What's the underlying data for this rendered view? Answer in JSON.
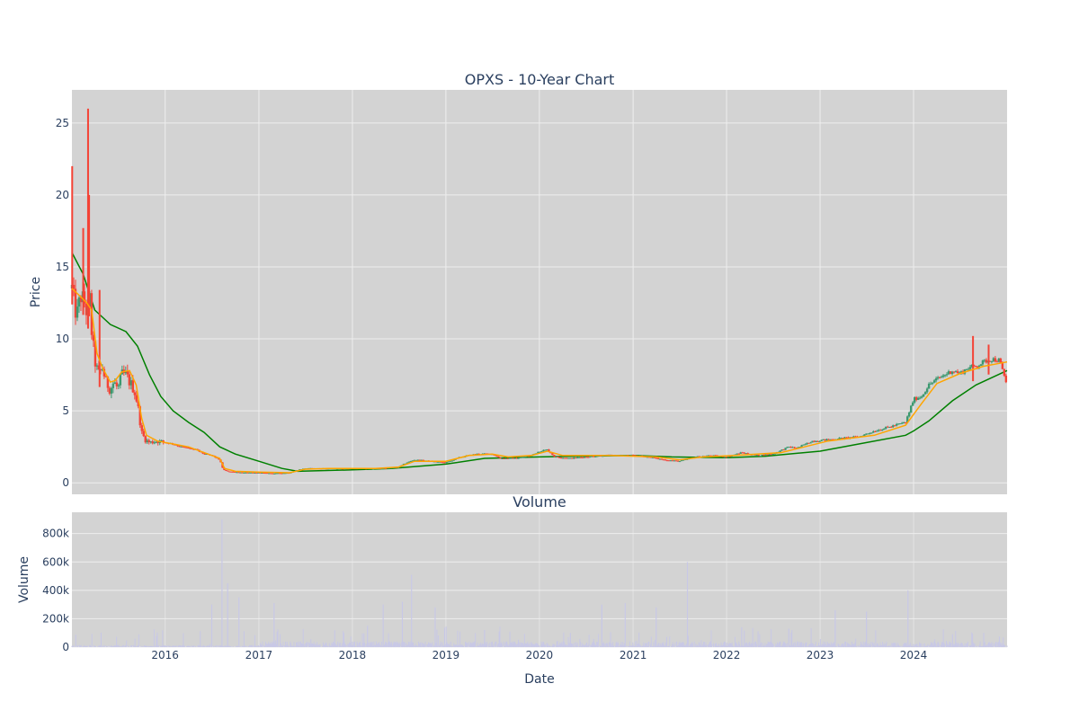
{
  "colors": {
    "plot_bg": "#d3d3d3",
    "grid": "#eeeeee",
    "increasing": "#3d9970",
    "decreasing": "#f44336",
    "ma_short": "#ffa500",
    "ma_long": "#008000",
    "volume": "#c8c8e6",
    "text": "#2a3f5f"
  },
  "chart_data": [
    {
      "type": "candlestick",
      "title": "OPXS - 10-Year Chart",
      "xlabel": "",
      "ylabel": "Price",
      "ylim": [
        -0.8,
        27.3
      ],
      "xlim": [
        "2015-01-02",
        "2024-12-31"
      ],
      "yticks": [
        0,
        5,
        10,
        15,
        20,
        25
      ],
      "xticks": [
        "2016",
        "2017",
        "2018",
        "2019",
        "2020",
        "2021",
        "2022",
        "2023",
        "2024"
      ],
      "grid": true,
      "legend": "none",
      "close_points": [
        [
          "2015-01-02",
          13.5
        ],
        [
          "2015-01-20",
          11.5
        ],
        [
          "2015-02-05",
          13.0
        ],
        [
          "2015-02-20",
          12.5
        ],
        [
          "2015-03-05",
          11.5
        ],
        [
          "2015-03-12",
          13.0
        ],
        [
          "2015-03-20",
          10.5
        ],
        [
          "2015-04-01",
          8.5
        ],
        [
          "2015-04-15",
          7.5
        ],
        [
          "2015-05-01",
          8.0
        ],
        [
          "2015-05-15",
          7.0
        ],
        [
          "2015-06-01",
          6.5
        ],
        [
          "2015-06-15",
          7.0
        ],
        [
          "2015-07-01",
          6.5
        ],
        [
          "2015-07-15",
          7.5
        ],
        [
          "2015-08-01",
          7.5
        ],
        [
          "2015-08-15",
          7.0
        ],
        [
          "2015-09-01",
          6.5
        ],
        [
          "2015-09-15",
          5.5
        ],
        [
          "2015-10-01",
          3.5
        ],
        [
          "2015-10-15",
          3.0
        ],
        [
          "2015-11-01",
          2.8
        ],
        [
          "2015-12-01",
          2.9
        ],
        [
          "2016-01-01",
          2.8
        ],
        [
          "2016-02-01",
          2.7
        ],
        [
          "2016-03-01",
          2.5
        ],
        [
          "2016-04-01",
          2.4
        ],
        [
          "2016-05-01",
          2.3
        ],
        [
          "2016-06-01",
          2.0
        ],
        [
          "2016-07-01",
          1.9
        ],
        [
          "2016-08-01",
          1.6
        ],
        [
          "2016-08-15",
          0.9
        ],
        [
          "2016-09-01",
          0.8
        ],
        [
          "2016-10-01",
          0.75
        ],
        [
          "2016-11-01",
          0.7
        ],
        [
          "2017-01-01",
          0.7
        ],
        [
          "2017-03-01",
          0.65
        ],
        [
          "2017-05-01",
          0.7
        ],
        [
          "2017-06-01",
          0.9
        ],
        [
          "2017-07-01",
          1.0
        ],
        [
          "2017-09-01",
          1.0
        ],
        [
          "2017-11-01",
          1.0
        ],
        [
          "2018-01-01",
          1.0
        ],
        [
          "2018-03-01",
          1.0
        ],
        [
          "2018-05-01",
          1.0
        ],
        [
          "2018-07-01",
          1.1
        ],
        [
          "2018-08-01",
          1.4
        ],
        [
          "2018-09-01",
          1.6
        ],
        [
          "2018-11-01",
          1.5
        ],
        [
          "2019-01-01",
          1.4
        ],
        [
          "2019-03-01",
          1.8
        ],
        [
          "2019-05-01",
          2.0
        ],
        [
          "2019-07-01",
          2.0
        ],
        [
          "2019-08-01",
          1.7
        ],
        [
          "2019-10-01",
          1.7
        ],
        [
          "2019-12-01",
          1.9
        ],
        [
          "2020-01-01",
          2.2
        ],
        [
          "2020-02-01",
          2.3
        ],
        [
          "2020-03-01",
          1.8
        ],
        [
          "2020-05-01",
          1.7
        ],
        [
          "2020-07-01",
          1.8
        ],
        [
          "2020-09-01",
          1.9
        ],
        [
          "2020-11-01",
          1.9
        ],
        [
          "2021-01-01",
          1.9
        ],
        [
          "2021-03-01",
          1.8
        ],
        [
          "2021-05-01",
          1.6
        ],
        [
          "2021-07-01",
          1.5
        ],
        [
          "2021-09-01",
          1.8
        ],
        [
          "2021-11-01",
          1.9
        ],
        [
          "2022-01-01",
          1.8
        ],
        [
          "2022-03-01",
          2.1
        ],
        [
          "2022-05-01",
          1.9
        ],
        [
          "2022-07-01",
          2.0
        ],
        [
          "2022-09-01",
          2.5
        ],
        [
          "2022-10-01",
          2.4
        ],
        [
          "2022-12-01",
          2.9
        ],
        [
          "2023-02-01",
          3.0
        ],
        [
          "2023-04-01",
          3.1
        ],
        [
          "2023-06-01",
          3.2
        ],
        [
          "2023-08-01",
          3.6
        ],
        [
          "2023-10-01",
          3.9
        ],
        [
          "2023-12-01",
          4.2
        ],
        [
          "2024-01-01",
          5.8
        ],
        [
          "2024-02-01",
          6.0
        ],
        [
          "2024-03-01",
          6.8
        ],
        [
          "2024-04-01",
          7.2
        ],
        [
          "2024-05-01",
          7.5
        ],
        [
          "2024-06-01",
          7.8
        ],
        [
          "2024-07-01",
          7.6
        ],
        [
          "2024-08-01",
          8.0
        ],
        [
          "2024-09-01",
          8.1
        ],
        [
          "2024-10-01",
          8.4
        ],
        [
          "2024-11-01",
          8.6
        ],
        [
          "2024-12-01",
          8.5
        ],
        [
          "2024-12-31",
          6.8
        ]
      ],
      "spikes": [
        [
          "2015-01-03",
          22.0
        ],
        [
          "2015-03-06",
          26.0
        ],
        [
          "2015-03-10",
          20.0
        ],
        [
          "2015-02-15",
          17.7
        ],
        [
          "2015-04-20",
          13.4
        ],
        [
          "2024-08-20",
          10.2
        ],
        [
          "2024-10-20",
          9.6
        ]
      ],
      "ma_short": [
        [
          "2015-01-02",
          13.5
        ],
        [
          "2015-02-01",
          13.0
        ],
        [
          "2015-03-01",
          12.5
        ],
        [
          "2015-03-20",
          12.0
        ],
        [
          "2015-04-10",
          9.0
        ],
        [
          "2015-05-01",
          8.0
        ],
        [
          "2015-06-01",
          7.0
        ],
        [
          "2015-06-20",
          7.1
        ],
        [
          "2015-07-15",
          7.7
        ],
        [
          "2015-08-15",
          7.8
        ],
        [
          "2015-09-10",
          6.8
        ],
        [
          "2015-10-01",
          4.5
        ],
        [
          "2015-10-20",
          3.3
        ],
        [
          "2015-12-01",
          2.9
        ],
        [
          "2016-02-01",
          2.7
        ],
        [
          "2016-04-01",
          2.5
        ],
        [
          "2016-06-01",
          2.1
        ],
        [
          "2016-08-01",
          1.7
        ],
        [
          "2016-08-20",
          1.0
        ],
        [
          "2016-10-01",
          0.8
        ],
        [
          "2017-01-01",
          0.75
        ],
        [
          "2017-05-01",
          0.7
        ],
        [
          "2017-07-01",
          0.95
        ],
        [
          "2017-10-01",
          1.0
        ],
        [
          "2018-04-01",
          1.0
        ],
        [
          "2018-07-01",
          1.1
        ],
        [
          "2018-09-01",
          1.5
        ],
        [
          "2019-01-01",
          1.5
        ],
        [
          "2019-04-01",
          1.9
        ],
        [
          "2019-07-01",
          2.0
        ],
        [
          "2019-09-01",
          1.8
        ],
        [
          "2019-12-01",
          1.9
        ],
        [
          "2020-02-01",
          2.2
        ],
        [
          "2020-04-01",
          1.9
        ],
        [
          "2020-10-01",
          1.9
        ],
        [
          "2021-04-01",
          1.8
        ],
        [
          "2021-07-01",
          1.6
        ],
        [
          "2021-10-01",
          1.8
        ],
        [
          "2022-02-01",
          1.9
        ],
        [
          "2022-08-01",
          2.1
        ],
        [
          "2022-11-01",
          2.5
        ],
        [
          "2023-02-01",
          2.9
        ],
        [
          "2023-08-01",
          3.3
        ],
        [
          "2023-12-01",
          4.0
        ],
        [
          "2024-02-01",
          5.5
        ],
        [
          "2024-04-01",
          6.9
        ],
        [
          "2024-07-01",
          7.6
        ],
        [
          "2024-10-01",
          8.1
        ],
        [
          "2024-12-31",
          8.4
        ]
      ],
      "ma_long": [
        [
          "2015-01-02",
          16.0
        ],
        [
          "2015-02-15",
          14.5
        ],
        [
          "2015-04-01",
          12.0
        ],
        [
          "2015-06-01",
          11.0
        ],
        [
          "2015-08-01",
          10.5
        ],
        [
          "2015-09-15",
          9.5
        ],
        [
          "2015-11-01",
          7.5
        ],
        [
          "2015-12-15",
          6.0
        ],
        [
          "2016-02-01",
          5.0
        ],
        [
          "2016-04-01",
          4.2
        ],
        [
          "2016-06-01",
          3.5
        ],
        [
          "2016-08-01",
          2.5
        ],
        [
          "2016-10-01",
          2.0
        ],
        [
          "2017-01-01",
          1.5
        ],
        [
          "2017-04-01",
          1.0
        ],
        [
          "2017-06-01",
          0.8
        ],
        [
          "2018-01-01",
          0.9
        ],
        [
          "2018-06-01",
          1.0
        ],
        [
          "2019-01-01",
          1.3
        ],
        [
          "2019-06-01",
          1.7
        ],
        [
          "2020-01-01",
          1.8
        ],
        [
          "2020-06-01",
          1.85
        ],
        [
          "2021-01-01",
          1.9
        ],
        [
          "2021-06-01",
          1.8
        ],
        [
          "2022-01-01",
          1.75
        ],
        [
          "2022-06-01",
          1.85
        ],
        [
          "2023-01-01",
          2.2
        ],
        [
          "2023-06-01",
          2.7
        ],
        [
          "2023-12-01",
          3.3
        ],
        [
          "2024-01-01",
          3.6
        ],
        [
          "2024-03-01",
          4.3
        ],
        [
          "2024-06-01",
          5.7
        ],
        [
          "2024-09-01",
          6.8
        ],
        [
          "2024-12-31",
          7.8
        ]
      ]
    },
    {
      "type": "bar",
      "title": "Volume",
      "xlabel": "Date",
      "ylabel": "Volume",
      "ylim": [
        0,
        950000
      ],
      "yticks": [
        0,
        200000,
        400000,
        600000,
        800000
      ],
      "ytick_labels": [
        "0",
        "200k",
        "400k",
        "600k",
        "800k"
      ],
      "xticks": [
        "2016",
        "2017",
        "2018",
        "2019",
        "2020",
        "2021",
        "2022",
        "2023",
        "2024"
      ],
      "grid": true,
      "spikes": [
        [
          "2016-07-01",
          300000
        ],
        [
          "2016-08-10",
          900000
        ],
        [
          "2016-09-01",
          450000
        ],
        [
          "2016-10-15",
          350000
        ],
        [
          "2017-03-01",
          310000
        ],
        [
          "2018-03-01",
          150000
        ],
        [
          "2018-05-01",
          300000
        ],
        [
          "2018-07-15",
          320000
        ],
        [
          "2018-08-20",
          510000
        ],
        [
          "2018-11-20",
          280000
        ],
        [
          "2019-06-01",
          120000
        ],
        [
          "2020-05-01",
          100000
        ],
        [
          "2020-09-01",
          300000
        ],
        [
          "2020-12-01",
          310000
        ],
        [
          "2021-04-01",
          280000
        ],
        [
          "2021-08-01",
          600000
        ],
        [
          "2022-03-01",
          140000
        ],
        [
          "2022-09-01",
          130000
        ],
        [
          "2023-03-01",
          260000
        ],
        [
          "2023-07-01",
          250000
        ],
        [
          "2023-12-10",
          400000
        ],
        [
          "2024-06-01",
          90000
        ],
        [
          "2024-10-01",
          100000
        ]
      ]
    }
  ]
}
